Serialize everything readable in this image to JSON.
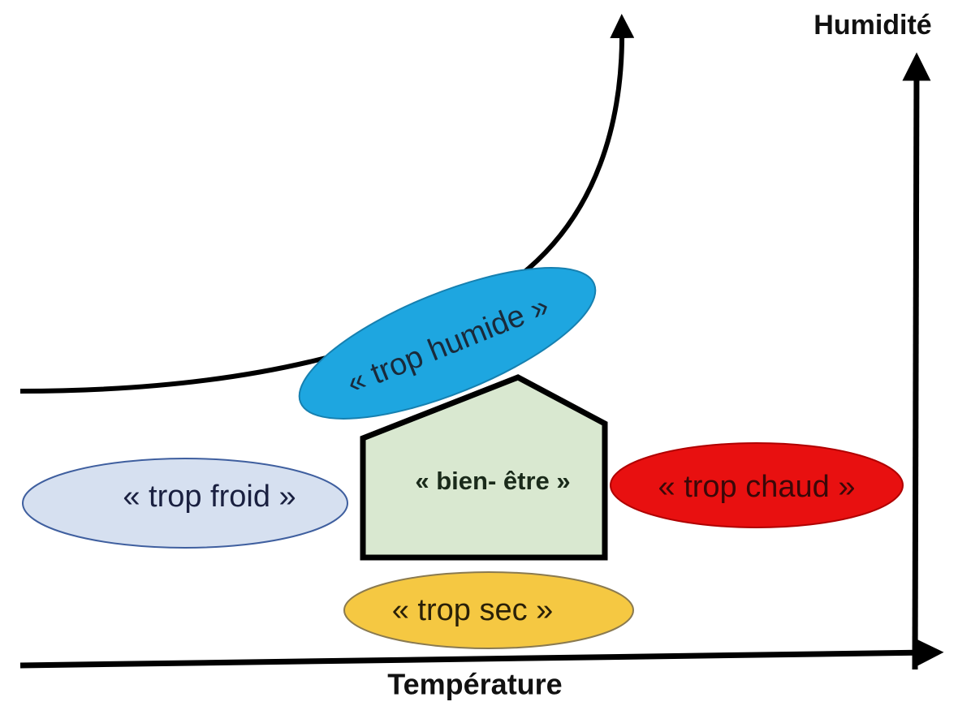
{
  "axes": {
    "y_label": "Humidité",
    "x_label": "Température"
  },
  "zones": {
    "humid": "« trop humide »",
    "comfort": "« bien- être »",
    "cold": "« trop froid »",
    "hot": "« trop chaud »",
    "dry": "« trop sec »"
  }
}
